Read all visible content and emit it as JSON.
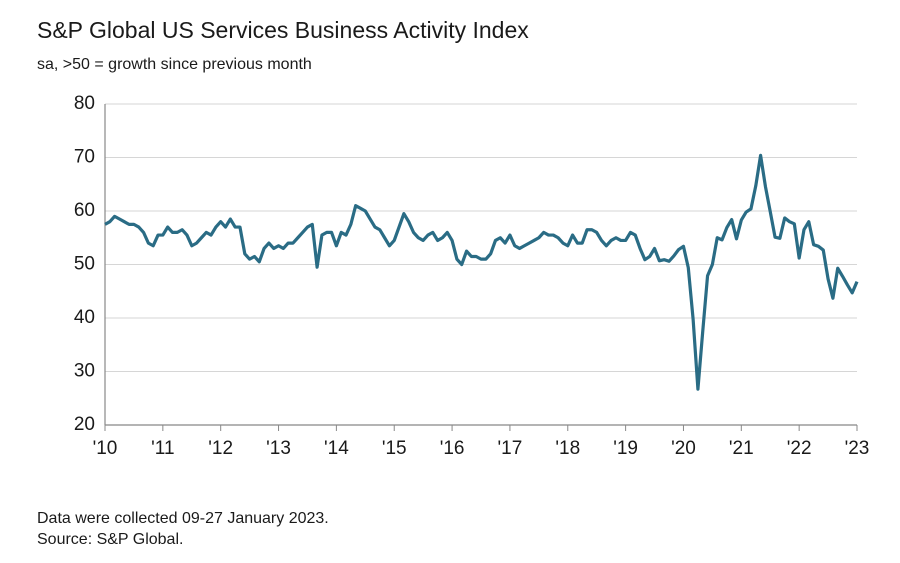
{
  "chart_data": {
    "type": "line",
    "title": "S&P Global US Services Business Activity Index",
    "subtitle": "sa, >50 = growth since previous month",
    "footnotes": [
      "Data were collected 09-27 January 2023.",
      "Source: S&P Global."
    ],
    "categories": [
      "'10",
      null,
      null,
      null,
      null,
      null,
      null,
      null,
      null,
      null,
      null,
      null,
      "'11",
      null,
      null,
      null,
      null,
      null,
      null,
      null,
      null,
      null,
      null,
      null,
      "'12",
      null,
      null,
      null,
      null,
      null,
      null,
      null,
      null,
      null,
      null,
      null,
      "'13",
      null,
      null,
      null,
      null,
      null,
      null,
      null,
      null,
      null,
      null,
      null,
      "'14",
      null,
      null,
      null,
      null,
      null,
      null,
      null,
      null,
      null,
      null,
      null,
      "'15",
      null,
      null,
      null,
      null,
      null,
      null,
      null,
      null,
      null,
      null,
      null,
      "'16",
      null,
      null,
      null,
      null,
      null,
      null,
      null,
      null,
      null,
      null,
      null,
      "'17",
      null,
      null,
      null,
      null,
      null,
      null,
      null,
      null,
      null,
      null,
      null,
      "'18",
      null,
      null,
      null,
      null,
      null,
      null,
      null,
      null,
      null,
      null,
      null,
      "'19",
      null,
      null,
      null,
      null,
      null,
      null,
      null,
      null,
      null,
      null,
      null,
      "'20",
      null,
      null,
      null,
      null,
      null,
      null,
      null,
      null,
      null,
      null,
      null,
      "'21",
      null,
      null,
      null,
      null,
      null,
      null,
      null,
      null,
      null,
      null,
      null,
      "'22",
      null,
      null,
      null,
      null,
      null,
      null,
      null,
      null,
      null,
      null,
      null,
      "'23"
    ],
    "series": [
      {
        "color": "#2a6c85",
        "values": [
          57.5,
          58,
          59,
          58.5,
          58,
          57.5,
          57.5,
          57,
          56,
          54,
          53.5,
          55.5,
          55.5,
          57,
          56,
          56,
          56.5,
          55.5,
          53.5,
          54,
          55,
          56,
          55.5,
          57,
          58,
          57,
          58.5,
          57,
          57,
          52,
          51,
          51.5,
          50.5,
          53,
          54,
          53,
          53.5,
          53,
          54,
          54,
          55,
          56,
          57,
          57.5,
          49.5,
          55.5,
          56,
          56,
          53.5,
          56,
          55.5,
          57.5,
          61,
          60.5,
          60,
          58.5,
          57,
          56.5,
          55,
          53.5,
          54.5,
          57,
          59.5,
          58,
          56,
          55,
          54.5,
          55.5,
          56,
          54.5,
          55,
          56,
          54.5,
          51,
          50,
          52.5,
          51.5,
          51.5,
          51,
          51,
          52,
          54.5,
          55,
          54,
          55.5,
          53.5,
          53,
          53.5,
          54,
          54.5,
          55,
          56,
          55.5,
          55.5,
          55,
          54,
          53.5,
          55.5,
          54,
          54,
          56.5,
          56.5,
          56,
          54.5,
          53.5,
          54.5,
          55,
          54.5,
          54.5,
          56,
          55.5,
          53,
          50.9,
          51.5,
          53,
          50.7,
          50.9,
          50.6,
          51.6,
          52.8,
          53.4,
          49.4,
          39.8,
          26.7,
          37.5,
          47.9,
          50,
          55,
          54.6,
          56.9,
          58.4,
          54.8,
          58.3,
          59.8,
          60.4,
          64.7,
          70.4,
          64.6,
          59.9,
          55.1,
          54.9,
          58.7,
          58,
          57.6,
          51.2,
          56.5,
          58,
          53.7,
          53.4,
          52.7,
          47.3,
          43.7,
          49.3,
          47.8,
          46.2,
          44.7,
          46.8
        ]
      }
    ],
    "ylim": [
      20,
      80
    ],
    "yticks": [
      20,
      30,
      40,
      50,
      60,
      70,
      80
    ],
    "grid": true
  }
}
